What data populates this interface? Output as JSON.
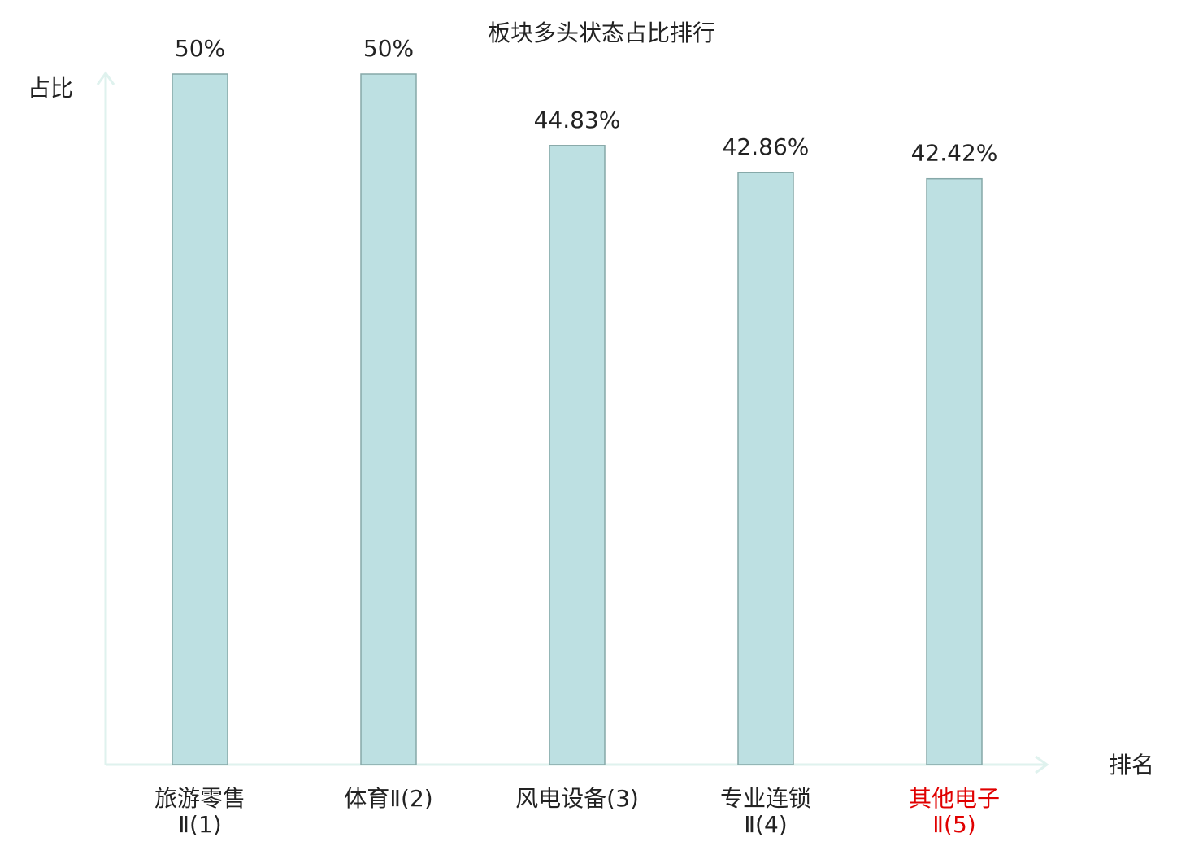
{
  "chart_data": {
    "type": "bar",
    "title": "板块多头状态占比排行",
    "y_label": "占比",
    "x_label": "排名",
    "categories": [
      "旅游零售Ⅱ(1)",
      "体育Ⅱ(2)",
      "风电设备(3)",
      "专业连锁Ⅱ(4)",
      "其他电子Ⅱ(5)"
    ],
    "category_colors": [
      "#222222",
      "#222222",
      "#222222",
      "#222222",
      "#e00000"
    ],
    "values": [
      50,
      50,
      44.83,
      42.86,
      42.42
    ],
    "value_labels": [
      "50%",
      "50%",
      "44.83%",
      "42.86%",
      "42.42%"
    ],
    "color": "#bde0e2",
    "ylim": [
      0,
      50
    ]
  }
}
